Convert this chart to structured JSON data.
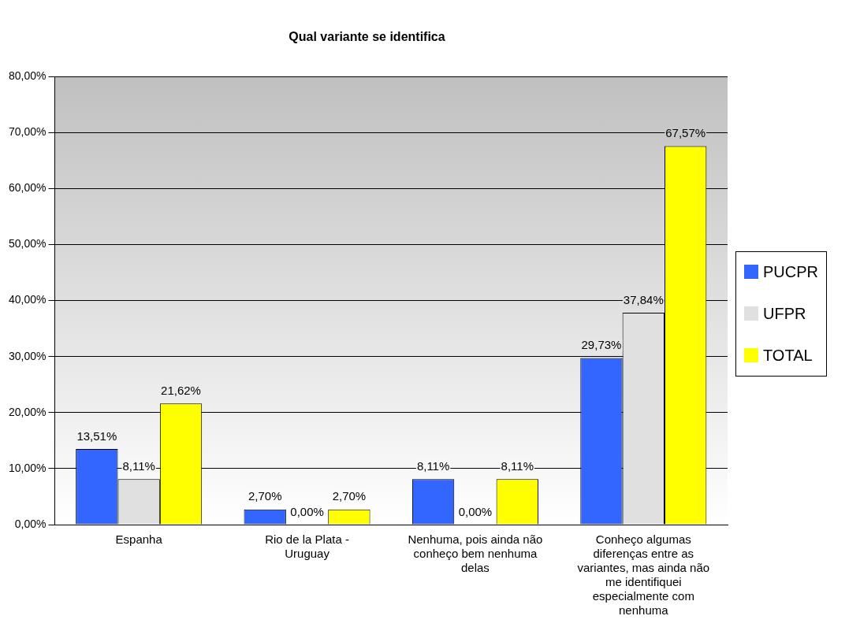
{
  "chart_data": {
    "type": "bar",
    "title": "Qual variante se identifica",
    "categories": [
      "Espanha",
      "Rio de la Plata - Uruguay",
      "Nenhuma, pois ainda não conheço bem nenhuma delas",
      "Conheço algumas diferenças entre as variantes, mas ainda não me identifiquei especialmente com nenhuma"
    ],
    "series": [
      {
        "name": "PUCPR",
        "color": "#3366ff",
        "values": [
          13.51,
          2.7,
          8.11,
          29.73
        ],
        "value_labels": [
          "13,51%",
          "2,70%",
          "8,11%",
          "29,73%"
        ]
      },
      {
        "name": "UFPR",
        "color": "#e0e0e0",
        "values": [
          8.11,
          0,
          0,
          37.84
        ],
        "value_labels": [
          "8,11%",
          "0,00%",
          "0,00%",
          "37,84%"
        ]
      },
      {
        "name": "TOTAL",
        "color": "#ffff00",
        "values": [
          21.62,
          2.7,
          8.11,
          67.57
        ],
        "value_labels": [
          "21,62%",
          "2,70%",
          "8,11%",
          "67,57%"
        ]
      }
    ],
    "ylim": [
      0,
      80
    ],
    "yticks": [
      {
        "value": 0,
        "label": "0,00%"
      },
      {
        "value": 10,
        "label": "10,00%"
      },
      {
        "value": 20,
        "label": "20,00%"
      },
      {
        "value": 30,
        "label": "30,00%"
      },
      {
        "value": 40,
        "label": "40,00%"
      },
      {
        "value": 50,
        "label": "50,00%"
      },
      {
        "value": 60,
        "label": "60,00%"
      },
      {
        "value": 70,
        "label": "70,00%"
      },
      {
        "value": 80,
        "label": "80,00%"
      }
    ],
    "grid": "y",
    "legend": "right"
  }
}
